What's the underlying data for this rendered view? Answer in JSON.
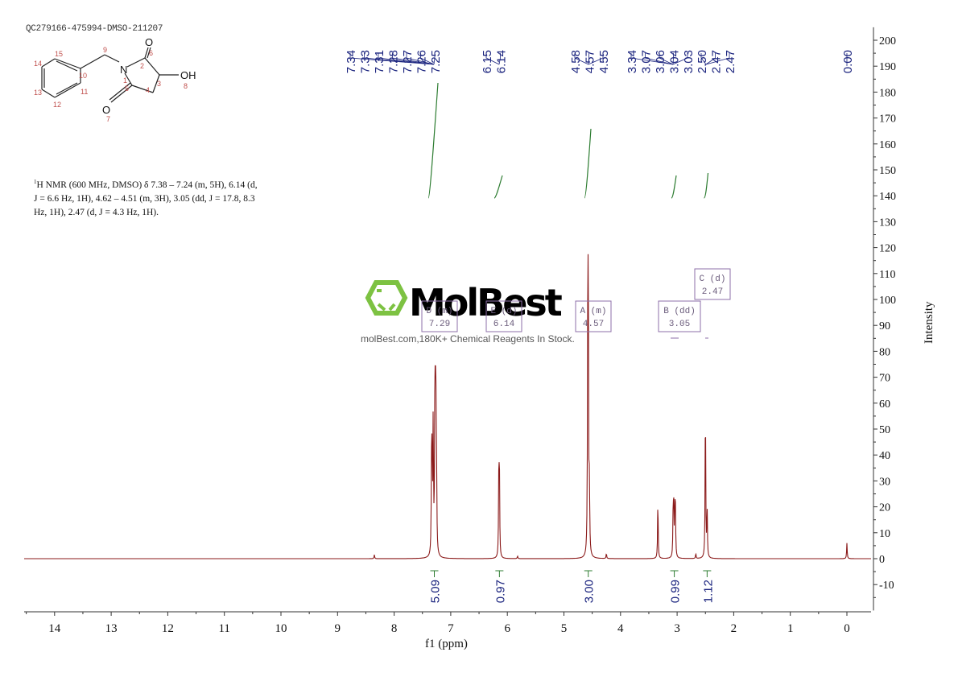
{
  "header": {
    "sample_id": "QC279166-475994-DMSO-211207"
  },
  "structure": {
    "atoms": {
      "N": "N",
      "OH": "OH",
      "O_top": "O",
      "O_bottom": "O"
    },
    "atom_numbers": [
      "1",
      "2",
      "3",
      "4",
      "5",
      "6",
      "7",
      "8",
      "9",
      "10",
      "11",
      "12",
      "13",
      "14",
      "15"
    ]
  },
  "nmr_description": {
    "superscript": "1",
    "line1": "H NMR (600 MHz, DMSO) δ 7.38 – 7.24 (m, 5H), 6.14 (d,",
    "line2": "J = 6.6 Hz, 1H), 4.62 – 4.51 (m, 3H), 3.05 (dd, J = 17.8, 8.3",
    "line3": "Hz, 1H), 2.47 (d, J = 4.3 Hz, 1H)."
  },
  "watermark": {
    "brand": "MolBest",
    "tagline": "molBest.com,180K+ Chemical Reagents In Stock.",
    "accent_color": "#7dc242"
  },
  "chart_data": {
    "type": "line",
    "title": "",
    "xlabel": "f1 (ppm)",
    "ylabel": "Intensity",
    "xlim": [
      14.5,
      -0.4
    ],
    "ylim": [
      -20,
      205
    ],
    "x_ticks": [
      "14",
      "13",
      "12",
      "11",
      "10",
      "9",
      "8",
      "7",
      "6",
      "5",
      "4",
      "3",
      "2",
      "1",
      "0"
    ],
    "y_ticks": [
      "200",
      "190",
      "180",
      "170",
      "160",
      "150",
      "140",
      "130",
      "120",
      "110",
      "100",
      "90",
      "80",
      "70",
      "60",
      "50",
      "40",
      "30",
      "20",
      "10",
      "0",
      "-10"
    ],
    "grid": false,
    "peak_labels": [
      "7.34",
      "7.33",
      "7.31",
      "7.28",
      "7.27",
      "7.26",
      "7.25",
      "6.15",
      "6.14",
      "4.58",
      "4.57",
      "4.55",
      "3.34",
      "3.07",
      "3.06",
      "3.04",
      "3.03",
      "2.50",
      "2.47",
      "2.47",
      "0.00"
    ],
    "peaks": [
      {
        "ppm": 8.35,
        "intensity": 1.5
      },
      {
        "ppm": 7.34,
        "intensity": 30
      },
      {
        "ppm": 7.33,
        "intensity": 38
      },
      {
        "ppm": 7.31,
        "intensity": 51
      },
      {
        "ppm": 7.28,
        "intensity": 63
      },
      {
        "ppm": 7.27,
        "intensity": 44
      },
      {
        "ppm": 7.26,
        "intensity": 45
      },
      {
        "ppm": 7.25,
        "intensity": 22
      },
      {
        "ppm": 6.15,
        "intensity": 32
      },
      {
        "ppm": 6.14,
        "intensity": 31
      },
      {
        "ppm": 5.82,
        "intensity": 1
      },
      {
        "ppm": 4.58,
        "intensity": 70
      },
      {
        "ppm": 4.57,
        "intensity": 110
      },
      {
        "ppm": 4.55,
        "intensity": 25
      },
      {
        "ppm": 4.25,
        "intensity": 2
      },
      {
        "ppm": 3.34,
        "intensity": 23
      },
      {
        "ppm": 3.07,
        "intensity": 17
      },
      {
        "ppm": 3.06,
        "intensity": 19
      },
      {
        "ppm": 3.04,
        "intensity": 18
      },
      {
        "ppm": 3.03,
        "intensity": 16
      },
      {
        "ppm": 2.67,
        "intensity": 2
      },
      {
        "ppm": 2.5,
        "intensity": 62
      },
      {
        "ppm": 2.47,
        "intensity": 19
      },
      {
        "ppm": 0.0,
        "intensity": 6
      }
    ],
    "integrals": [
      {
        "ppm": 7.29,
        "value": "5.09"
      },
      {
        "ppm": 6.14,
        "value": "0.97"
      },
      {
        "ppm": 4.57,
        "value": "3.00"
      },
      {
        "ppm": 3.05,
        "value": "0.99"
      },
      {
        "ppm": 2.47,
        "value": "1.12"
      }
    ],
    "multiplets": [
      {
        "label": "D (m)",
        "shift": "7.29"
      },
      {
        "label": "E (d)",
        "shift": "6.14"
      },
      {
        "label": "A (m)",
        "shift": "4.57"
      },
      {
        "label": "B (dd)",
        "shift": "3.05"
      },
      {
        "label": "C (d)",
        "shift": "2.47"
      }
    ],
    "colors": {
      "spectrum": "#8b1a1a",
      "integral": "#2e7d32",
      "peak_label": "#1a237e",
      "multiplet_box": "#8e6fa8"
    }
  }
}
